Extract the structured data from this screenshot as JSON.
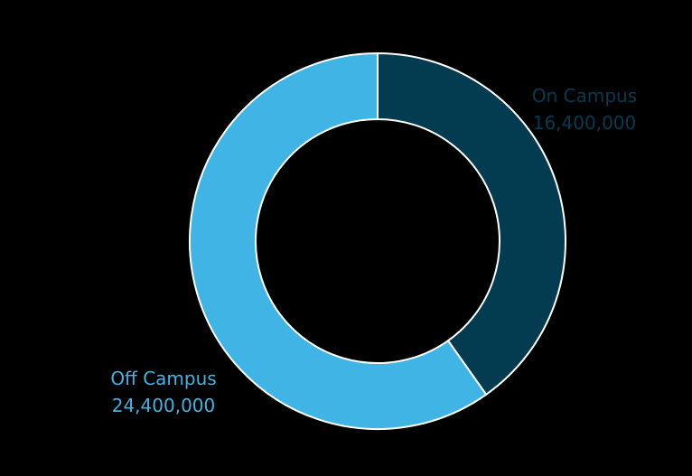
{
  "chart_data": {
    "type": "pie",
    "donut": true,
    "title": "",
    "categories": [
      "On Campus",
      "Off Campus"
    ],
    "values": [
      16400000,
      24400000
    ],
    "value_labels": [
      "16,400,000",
      "24,400,000"
    ],
    "colors": [
      "#033c51",
      "#40b4e5"
    ],
    "legend": "none"
  }
}
